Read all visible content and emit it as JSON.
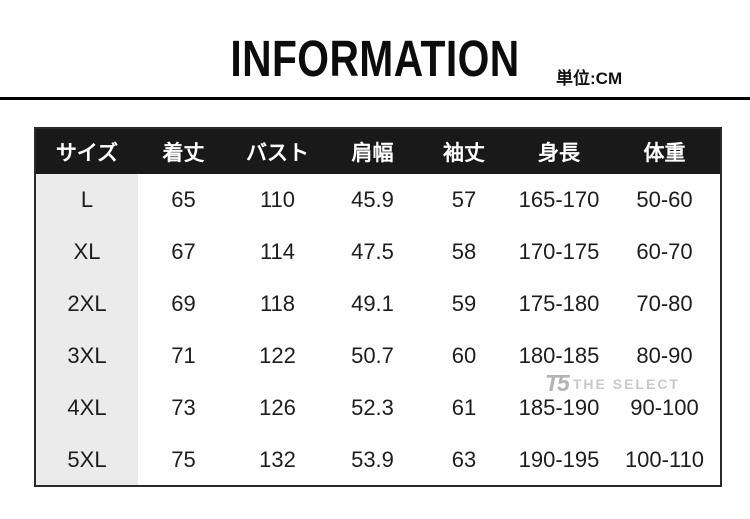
{
  "header": {
    "title": "INFORMATION",
    "unit_label": "単位:CM"
  },
  "size_table": {
    "columns": [
      "サイズ",
      "着丈",
      "バスト",
      "肩幅",
      "袖丈",
      "身長",
      "体重"
    ],
    "rows": [
      [
        "L",
        "65",
        "110",
        "45.9",
        "57",
        "165-170",
        "50-60"
      ],
      [
        "XL",
        "67",
        "114",
        "47.5",
        "58",
        "170-175",
        "60-70"
      ],
      [
        "2XL",
        "69",
        "118",
        "49.1",
        "59",
        "175-180",
        "70-80"
      ],
      [
        "3XL",
        "71",
        "122",
        "50.7",
        "60",
        "180-185",
        "80-90"
      ],
      [
        "4XL",
        "73",
        "126",
        "52.3",
        "61",
        "185-190",
        "90-100"
      ],
      [
        "5XL",
        "75",
        "132",
        "53.9",
        "63",
        "190-195",
        "100-110"
      ]
    ]
  },
  "watermark": {
    "logo_text": "T5",
    "brand": "THE SELECT"
  },
  "colors": {
    "header_bg": "#191919",
    "header_text": "#ffffff",
    "size_column_bg": "#ebebeb",
    "table_border": "#2a2a2a",
    "divider_rule": "#000000",
    "watermark_gray": "#c9c9c9"
  }
}
